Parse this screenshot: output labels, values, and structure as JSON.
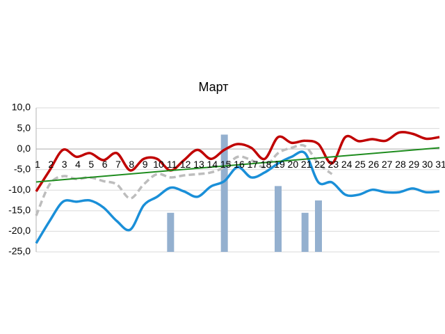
{
  "chart_data": {
    "type": "line",
    "title": "Март",
    "categories": [
      "1",
      "2",
      "3",
      "4",
      "5",
      "6",
      "7",
      "8",
      "9",
      "10",
      "11",
      "12",
      "13",
      "14",
      "15",
      "16",
      "17",
      "18",
      "19",
      "20",
      "21",
      "22",
      "23",
      "24",
      "25",
      "26",
      "27",
      "28",
      "29",
      "30",
      "31"
    ],
    "ylim": [
      -25,
      10
    ],
    "yticks": [
      {
        "value": 10,
        "label": "10,0"
      },
      {
        "value": 5,
        "label": "5,0"
      },
      {
        "value": 0,
        "label": "0,0"
      },
      {
        "value": -5,
        "label": "-5,0"
      },
      {
        "value": -10,
        "label": "-10,0"
      },
      {
        "value": -15,
        "label": "-15,0"
      },
      {
        "value": -20,
        "label": "-20,0"
      },
      {
        "value": -25,
        "label": "-25,0"
      }
    ],
    "grid": true,
    "bars": {
      "color": "#94b0cf",
      "values": [
        null,
        null,
        null,
        null,
        null,
        null,
        null,
        null,
        null,
        null,
        -15.5,
        null,
        null,
        null,
        3.5,
        null,
        null,
        null,
        -9.0,
        null,
        -15.5,
        -12.5,
        null,
        null,
        null,
        null,
        null,
        null,
        null,
        null,
        null
      ]
    },
    "series": [
      {
        "color": "#bdbdbd",
        "dashed": true,
        "values": [
          -16.2,
          -8.6,
          -6.6,
          -7.3,
          -6.9,
          -7.8,
          -8.6,
          -12.0,
          -8.6,
          -6.1,
          -6.9,
          -6.4,
          -6.1,
          -5.7,
          -4.4,
          -1.9,
          -2.7,
          -4.4,
          -1.0,
          0.3,
          0.7,
          -3.5,
          -6.1,
          null,
          null,
          null,
          null,
          null,
          null,
          null,
          null
        ]
      },
      {
        "color": "#1a8fd8",
        "values": [
          -22.9,
          -17.5,
          -12.8,
          -12.8,
          -12.5,
          -14.2,
          -17.5,
          -19.6,
          -13.7,
          -11.6,
          -9.4,
          -10.3,
          -11.6,
          -9.1,
          -7.8,
          -4.4,
          -6.9,
          -5.7,
          -3.5,
          -1.9,
          -1.0,
          -8.1,
          -8.1,
          -11.1,
          -11.1,
          -9.9,
          -10.5,
          -10.5,
          -9.6,
          -10.5,
          -10.3
        ]
      },
      {
        "color": "#c00000",
        "values": [
          -10.3,
          -5.2,
          -0.2,
          -1.9,
          -1.0,
          -2.7,
          -1.0,
          -5.2,
          -2.4,
          -2.4,
          -5.2,
          -2.7,
          -0.2,
          -2.4,
          -0.2,
          1.2,
          0.3,
          -2.4,
          2.9,
          1.5,
          2.0,
          1.2,
          -3.5,
          2.9,
          1.9,
          2.4,
          2.0,
          4.0,
          3.7,
          2.5,
          2.9
        ]
      }
    ],
    "trend": {
      "color": "#1e8c1e",
      "values": [
        -8.0,
        0.3
      ]
    }
  }
}
